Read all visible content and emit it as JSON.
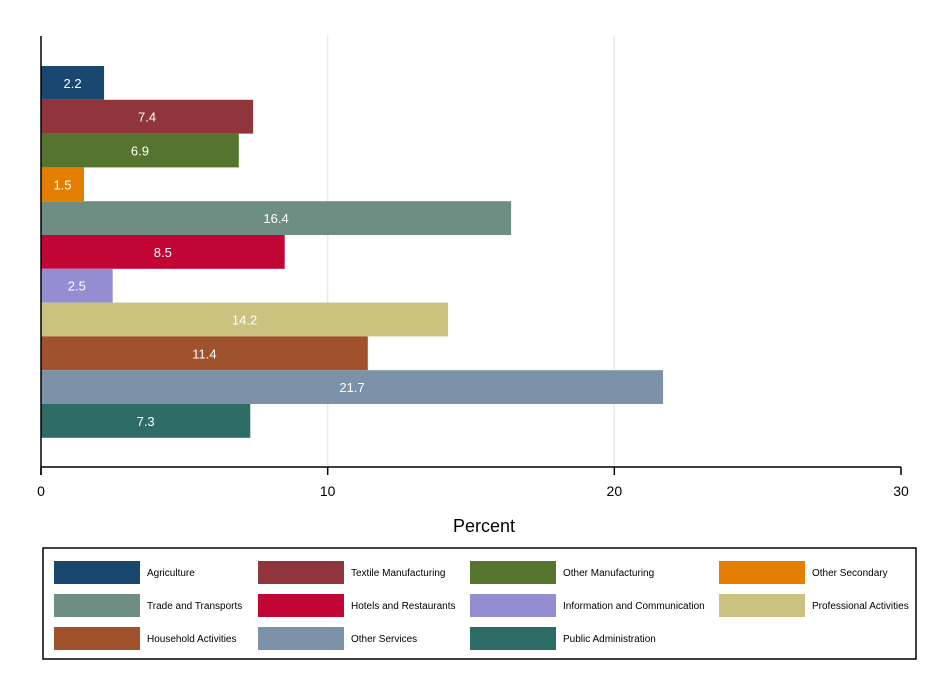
{
  "chart_data": {
    "type": "bar",
    "orientation": "horizontal",
    "title": "",
    "xlabel": "Percent",
    "ylabel": "",
    "xlim": [
      0,
      30
    ],
    "xticks": [
      0,
      10,
      20,
      30
    ],
    "grid": true,
    "legend_position": "bottom",
    "series": [
      {
        "name": "Agriculture",
        "value": 2.2,
        "color": "#1a476f"
      },
      {
        "name": "Textile Manufacturing",
        "value": 7.4,
        "color": "#90353b"
      },
      {
        "name": "Other Manufacturing",
        "value": 6.9,
        "color": "#55752f"
      },
      {
        "name": "Other Secondary",
        "value": 1.5,
        "color": "#e37e00"
      },
      {
        "name": "Trade and Transports",
        "value": 16.4,
        "color": "#6e8e84"
      },
      {
        "name": "Hotels and Restaurants",
        "value": 8.5,
        "color": "#c10534"
      },
      {
        "name": "Information and Communication",
        "value": 2.5,
        "color": "#938dd2"
      },
      {
        "name": "Professional Activities",
        "value": 14.2,
        "color": "#cac27e"
      },
      {
        "name": "Household Activities",
        "value": 11.4,
        "color": "#a0522d"
      },
      {
        "name": "Other Services",
        "value": 21.7,
        "color": "#7b92a8"
      },
      {
        "name": "Public Administration",
        "value": 7.3,
        "color": "#2d6d66"
      }
    ]
  }
}
